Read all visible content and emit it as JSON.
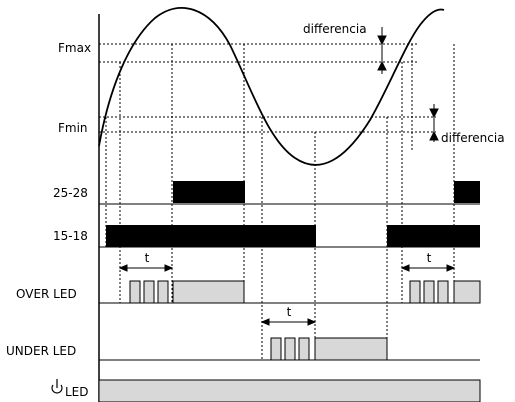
{
  "labels": {
    "fmax": "Fmax",
    "fmin": "Fmin",
    "relay_2528": "25-28",
    "relay_1518": "15-18",
    "over_led": "OVER LED",
    "under_led": "UNDER LED",
    "power_led": "LED",
    "power_icon": "power-icon"
  },
  "annotations": {
    "difference_top": "differencia",
    "difference_bottom": "differencia",
    "delay_over_left": "t",
    "delay_under": "t",
    "delay_over_right": "t"
  },
  "colors": {
    "ink": "#000000",
    "led_fill": "#d8d8d8"
  }
}
